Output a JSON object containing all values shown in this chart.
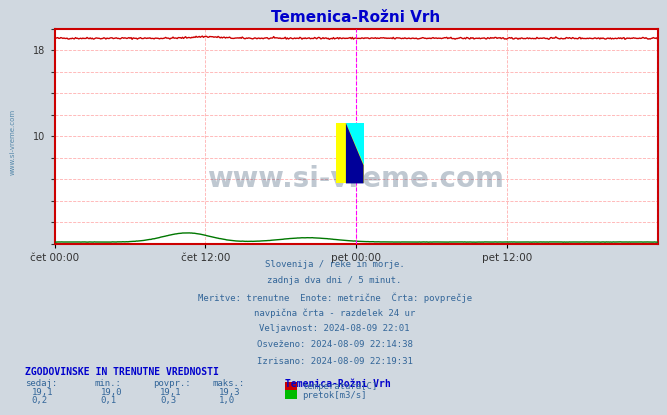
{
  "title": "Temenica-Rožni Vrh",
  "title_color": "#0000cc",
  "bg_color": "#d0d8e0",
  "plot_bg_color": "#ffffff",
  "grid_color": "#ffb0b0",
  "xlabel_ticks": [
    "čet 00:00",
    "čet 12:00",
    "pet 00:00",
    "pet 12:00"
  ],
  "xlabel_tick_positions": [
    0.0,
    0.25,
    0.5,
    0.75
  ],
  "ylim": [
    0,
    20
  ],
  "yticks": [
    0,
    2,
    4,
    6,
    8,
    10,
    12,
    14,
    16,
    18,
    20
  ],
  "temp_color": "#cc0000",
  "flow_color": "#007700",
  "vline_color": "#ff00ff",
  "vline_pos": 0.5,
  "temp_base": 19.1,
  "temp_min": 19.0,
  "temp_avg": 19.1,
  "temp_max": 19.3,
  "flow_base": 0.2,
  "flow_min": 0.1,
  "flow_avg": 0.3,
  "flow_max": 1.0,
  "watermark": "www.si-vreme.com",
  "watermark_color": "#1a3a5c",
  "sidebar_text": "www.si-vreme.com",
  "sidebar_color": "#5588aa",
  "info_lines": [
    "Slovenija / reke in morje.",
    "zadnja dva dni / 5 minut.",
    "Meritve: trenutne  Enote: metrične  Črta: povprečje",
    "navpična črta - razdelek 24 ur",
    "Veljavnost: 2024-08-09 22:01",
    "Osveženo: 2024-08-09 22:14:38",
    "Izrisano: 2024-08-09 22:19:31"
  ],
  "info_color": "#336699",
  "table_header": "ZGODOVINSKE IN TRENUTNE VREDNOSTI",
  "table_header_color": "#0000cc",
  "col_headers": [
    "sedaj:",
    "min.:",
    "povpr.:",
    "maks.:"
  ],
  "col_header_color": "#336699",
  "station_name": "Temenica-Rožni Vrh",
  "legend_temp": "temperatura[C]",
  "legend_flow": "pretok[m3/s]",
  "temp_rect_color": "#cc0000",
  "flow_rect_color": "#00bb00",
  "border_color": "#cc0000",
  "temp_display": [
    "19,1",
    "19,0",
    "19,1",
    "19,3"
  ],
  "flow_display": [
    "0,2",
    "0,1",
    "0,3",
    "1,0"
  ]
}
